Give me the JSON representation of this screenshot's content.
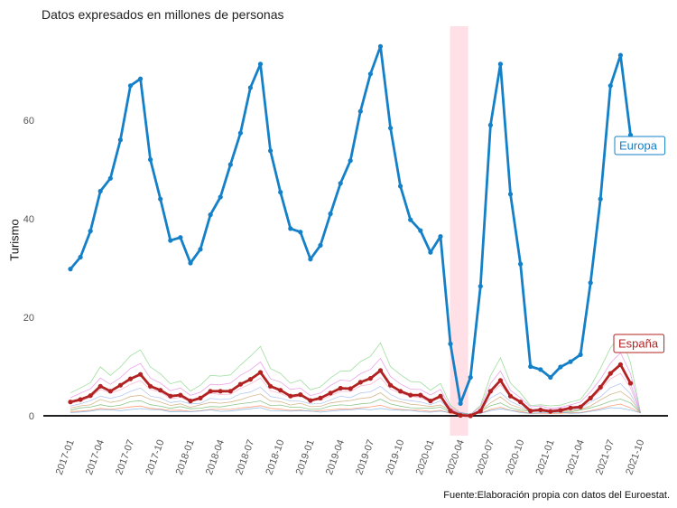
{
  "title": "Datos expresados en millones de personas",
  "caption": "Fuente:Elaboración propia con datos del Euroestat.",
  "chart_data": {
    "type": "line",
    "ylabel": "Turismo",
    "xlabel": "",
    "ylim": [
      -4,
      78
    ],
    "yticks": [
      0,
      20,
      40,
      60
    ],
    "x_tick_labels": [
      "2017-01",
      "2017-04",
      "2017-07",
      "2017-10",
      "2018-01",
      "2018-04",
      "2018-07",
      "2018-10",
      "2019-01",
      "2019-04",
      "2019-07",
      "2019-10",
      "2020-01",
      "2020-04",
      "2020-07",
      "2020-10",
      "2021-01",
      "2021-04",
      "2021-07",
      "2021-10"
    ],
    "months": [
      "2017-01",
      "2017-02",
      "2017-03",
      "2017-04",
      "2017-05",
      "2017-06",
      "2017-07",
      "2017-08",
      "2017-09",
      "2017-10",
      "2017-11",
      "2017-12",
      "2018-01",
      "2018-02",
      "2018-03",
      "2018-04",
      "2018-05",
      "2018-06",
      "2018-07",
      "2018-08",
      "2018-09",
      "2018-10",
      "2018-11",
      "2018-12",
      "2019-01",
      "2019-02",
      "2019-03",
      "2019-04",
      "2019-05",
      "2019-06",
      "2019-07",
      "2019-08",
      "2019-09",
      "2019-10",
      "2019-11",
      "2019-12",
      "2020-01",
      "2020-02",
      "2020-03",
      "2020-04",
      "2020-05",
      "2020-06",
      "2020-07",
      "2020-08",
      "2020-09",
      "2020-10",
      "2020-11",
      "2020-12",
      "2021-01",
      "2021-02",
      "2021-03",
      "2021-04",
      "2021-05",
      "2021-06",
      "2021-07",
      "2021-08",
      "2021-09"
    ],
    "highlight_band": [
      "2020-03",
      "2020-04"
    ],
    "highlight_color": "#ffe0e6",
    "series": [
      {
        "name": "Europa",
        "color": "#1480c8",
        "values": [
          29.8,
          32.2,
          37.5,
          45.6,
          48.2,
          56.0,
          67.0,
          68.4,
          52.0,
          44.0,
          35.6,
          36.2,
          31.0,
          33.8,
          40.8,
          44.4,
          51.0,
          57.4,
          66.6,
          71.4,
          53.8,
          45.4,
          38.0,
          37.3,
          31.8,
          34.6,
          41.0,
          47.2,
          51.8,
          61.8,
          69.4,
          75.0,
          58.4,
          46.6,
          39.8,
          37.6,
          33.2,
          36.4,
          14.6,
          2.5,
          7.8,
          26.3,
          59.0,
          71.4,
          45.0,
          30.8,
          10.0,
          9.4,
          7.8,
          9.9,
          11.0,
          12.4,
          27.0,
          44.0,
          67.0,
          73.2,
          57.0
        ]
      },
      {
        "name": "España",
        "color": "#b22222",
        "values": [
          2.8,
          3.3,
          4.1,
          6.0,
          5.0,
          6.2,
          7.5,
          8.4,
          6.0,
          5.2,
          4.0,
          4.2,
          3.0,
          3.6,
          5.0,
          5.0,
          5.0,
          6.4,
          7.4,
          8.8,
          6.0,
          5.2,
          4.0,
          4.3,
          3.1,
          3.6,
          4.6,
          5.6,
          5.5,
          6.8,
          7.6,
          9.2,
          6.2,
          5.0,
          4.2,
          4.2,
          3.0,
          4.0,
          1.0,
          0.1,
          0.0,
          1.0,
          5.0,
          7.2,
          4.0,
          2.8,
          1.0,
          1.2,
          0.9,
          1.1,
          1.6,
          1.8,
          3.6,
          5.8,
          8.6,
          10.4,
          6.6
        ]
      }
    ],
    "background_series_colors": [
      "#7fd37f",
      "#e38ae3",
      "#b59be8",
      "#f5a3c7",
      "#9fb8f0",
      "#c8a06a",
      "#66b366",
      "#ff7f50",
      "#6fa8dc"
    ],
    "label_europa": "Europa",
    "label_espana": "España"
  }
}
